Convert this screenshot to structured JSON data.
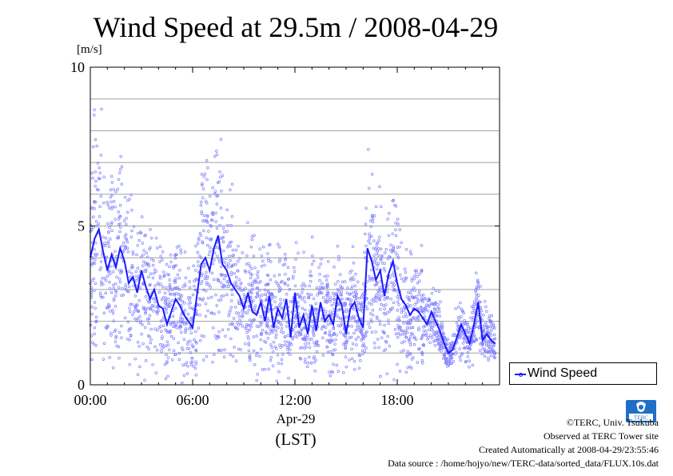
{
  "chart_data": {
    "type": "scatter",
    "title": "Wind Speed at 29.5m / 2008-04-29",
    "ylabel": "[m/s]",
    "xlabel_date": "Apr-29",
    "xlabel_tz": "(LST)",
    "ylim": [
      0,
      10
    ],
    "xlim_hours": [
      0,
      24
    ],
    "y_ticks": [
      "0",
      "5",
      "10"
    ],
    "x_ticks": [
      "00:00",
      "06:00",
      "12:00",
      "18:00"
    ],
    "grid": true,
    "legend_position": "right-bottom",
    "series": [
      {
        "name": "Wind Speed",
        "color": "#1a1aff",
        "scatter_color": "#7d7dff",
        "mean_line_hours": [
          0.0,
          0.25,
          0.5,
          0.75,
          1.0,
          1.25,
          1.5,
          1.75,
          2.0,
          2.25,
          2.5,
          2.75,
          3.0,
          3.25,
          3.5,
          3.75,
          4.0,
          4.25,
          4.5,
          4.75,
          5.0,
          5.25,
          5.5,
          5.75,
          6.0,
          6.25,
          6.5,
          6.75,
          7.0,
          7.25,
          7.5,
          7.75,
          8.0,
          8.25,
          8.5,
          8.75,
          9.0,
          9.25,
          9.5,
          9.75,
          10.0,
          10.25,
          10.5,
          10.75,
          11.0,
          11.25,
          11.5,
          11.75,
          12.0,
          12.25,
          12.5,
          12.75,
          13.0,
          13.25,
          13.5,
          13.75,
          14.0,
          14.25,
          14.5,
          14.75,
          15.0,
          15.25,
          15.5,
          15.75,
          16.0,
          16.25,
          16.5,
          16.75,
          17.0,
          17.25,
          17.5,
          17.75,
          18.0,
          18.25,
          18.5,
          18.75,
          19.0,
          19.25,
          19.5,
          19.75,
          20.0,
          20.25,
          20.5,
          20.75,
          21.0,
          21.25,
          21.5,
          21.75,
          22.0,
          22.25,
          22.5,
          22.75,
          23.0,
          23.25,
          23.5,
          23.75
        ],
        "mean_line_values": [
          4.0,
          4.6,
          4.9,
          4.2,
          3.6,
          4.1,
          3.7,
          4.3,
          3.9,
          3.2,
          3.4,
          2.9,
          3.6,
          3.1,
          2.7,
          3.0,
          2.5,
          2.4,
          1.9,
          2.3,
          2.7,
          2.5,
          2.2,
          2.0,
          1.8,
          2.8,
          3.8,
          4.0,
          3.6,
          4.3,
          4.7,
          3.8,
          3.6,
          3.2,
          3.0,
          2.8,
          2.4,
          2.9,
          2.3,
          2.2,
          2.6,
          2.0,
          2.8,
          1.8,
          2.4,
          2.1,
          2.7,
          1.5,
          2.9,
          1.8,
          2.2,
          1.6,
          2.5,
          1.7,
          2.6,
          2.0,
          2.2,
          1.9,
          2.8,
          2.5,
          1.6,
          2.4,
          2.6,
          2.1,
          1.8,
          4.3,
          3.9,
          3.3,
          3.6,
          2.8,
          3.5,
          3.9,
          3.2,
          2.7,
          2.5,
          2.2,
          2.4,
          2.3,
          2.1,
          1.9,
          2.3,
          2.0,
          1.7,
          1.3,
          1.0,
          1.1,
          1.5,
          1.9,
          1.6,
          1.3,
          1.9,
          2.6,
          1.4,
          1.6,
          1.4,
          1.3
        ],
        "scatter_count": 8640,
        "scatter_note_values": "10-second samples scattered around the mean line"
      }
    ]
  },
  "legend": {
    "label": "Wind Speed"
  },
  "footer": {
    "copyright": "©TERC, Univ. Tsukuba",
    "observed": "Observed at TERC Tower site",
    "created": "Created Automatically at 2008-04-29/23:55:46",
    "source": "Data source : /home/hojyo/new/TERC-data/sorted_data/FLUX.10s.dat"
  },
  "logo": {
    "text": "TERC",
    "color": "#1f6fc6"
  }
}
